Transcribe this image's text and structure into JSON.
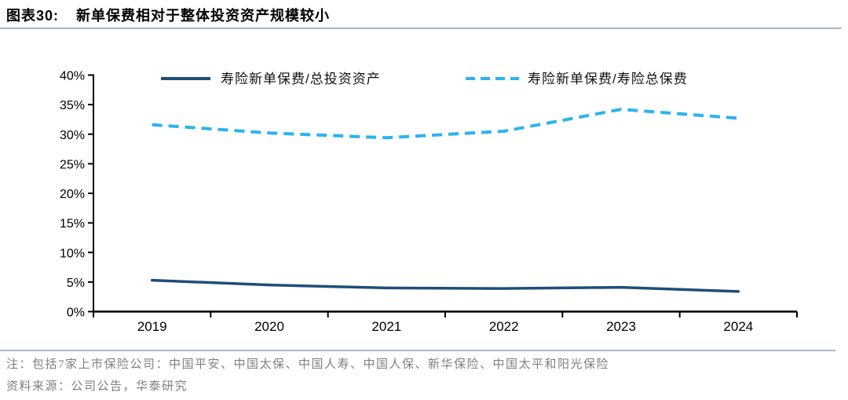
{
  "header": {
    "label": "图表30:",
    "title": "新单保费相对于整体投资资产规模较小"
  },
  "chart_data": {
    "type": "line",
    "categories": [
      "2019",
      "2020",
      "2021",
      "2022",
      "2023",
      "2024"
    ],
    "series": [
      {
        "name": "寿险新单保费/总投资资产",
        "style": "solid",
        "color": "#1F4E79",
        "values": [
          5.3,
          4.5,
          4.0,
          3.9,
          4.1,
          3.4
        ]
      },
      {
        "name": "寿险新单保费/寿险总保费",
        "style": "dashed",
        "color": "#2BB3F0",
        "values": [
          31.6,
          30.2,
          29.4,
          30.5,
          34.2,
          32.7
        ]
      }
    ],
    "ylim": [
      0,
      40
    ],
    "ytick_step": 5,
    "ytick_labels": [
      "0%",
      "5%",
      "10%",
      "15%",
      "20%",
      "25%",
      "30%",
      "35%",
      "40%"
    ],
    "grid": false,
    "legend_position": "top-inside"
  },
  "colors": {
    "divider_rule": "#A8BACC",
    "footnote_text": "#7F7F7F",
    "axis": "#000000"
  },
  "footnotes": {
    "note": "注：包括7家上市保险公司：中国平安、中国太保、中国人寿、中国人保、新华保险、中国太平和阳光保险",
    "source": "资料来源：公司公告，华泰研究"
  }
}
